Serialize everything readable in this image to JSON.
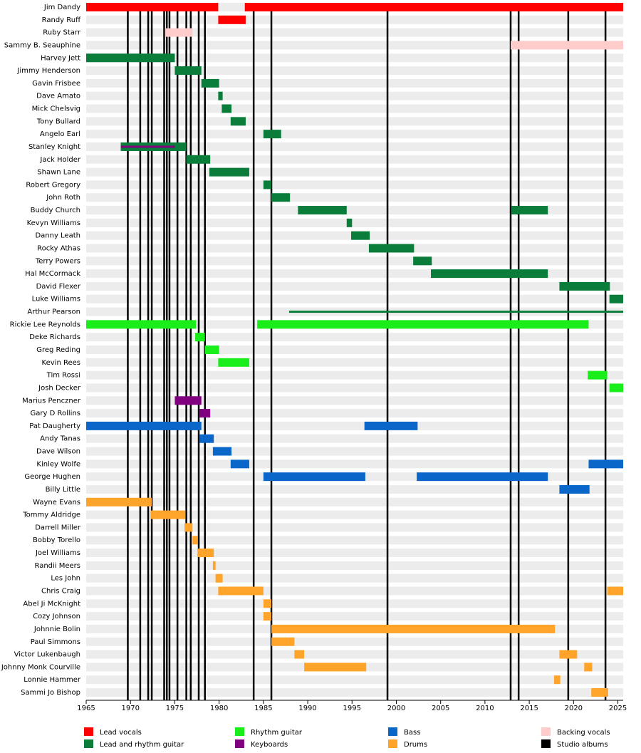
{
  "chart_data": {
    "type": "timeline",
    "xlim": [
      1965,
      2025.6
    ],
    "xticks": [
      1965,
      1970,
      1975,
      1980,
      1985,
      1990,
      1995,
      2000,
      2005,
      2010,
      2015,
      2020,
      2025
    ],
    "series": [
      {
        "name": "Lead vocals",
        "color": "#ff0000"
      },
      {
        "name": "Lead and rhythm guitar",
        "color": "#0a7d3a"
      },
      {
        "name": "Rhythm guitar",
        "color": "#1aee1a"
      },
      {
        "name": "Keyboards",
        "color": "#800080"
      },
      {
        "name": "Bass",
        "color": "#0a66c8"
      },
      {
        "name": "Drums",
        "color": "#ffa42a"
      },
      {
        "name": "Backing vocals",
        "color": "#ffcccc"
      },
      {
        "name": "Studio albums",
        "color": "#000000"
      }
    ],
    "albums": [
      1969.7,
      1971.1,
      1972.0,
      1972.4,
      1973.8,
      1974.1,
      1974.4,
      1975.3,
      1976.3,
      1976.8,
      1977.7,
      1978.4,
      1983.9,
      1985.9,
      1999.0,
      2012.9,
      2013.8,
      2019.4,
      2023.6
    ],
    "rows": [
      {
        "name": "Jim Dandy",
        "bars": [
          {
            "role": 0,
            "start": 1965,
            "end": 1979.9
          },
          {
            "role": 0,
            "start": 1982.9,
            "end": 2025.6
          }
        ]
      },
      {
        "name": "Randy Ruff",
        "bars": [
          {
            "role": 0,
            "start": 1979.9,
            "end": 1983.0
          }
        ]
      },
      {
        "name": "Ruby Starr",
        "bars": [
          {
            "role": 6,
            "start": 1973.9,
            "end": 1977.0
          }
        ]
      },
      {
        "name": "Sammy B. Seauphine",
        "bars": [
          {
            "role": 6,
            "start": 2012.9,
            "end": 2025.6
          }
        ]
      },
      {
        "name": "Harvey Jett",
        "bars": [
          {
            "role": 1,
            "start": 1965,
            "end": 1975.0
          }
        ]
      },
      {
        "name": "Jimmy Henderson",
        "bars": [
          {
            "role": 1,
            "start": 1975.0,
            "end": 1978.0
          }
        ]
      },
      {
        "name": "Gavin Frisbee",
        "bars": [
          {
            "role": 1,
            "start": 1978.0,
            "end": 1980.0
          }
        ]
      },
      {
        "name": "Dave Amato",
        "bars": [
          {
            "role": 1,
            "start": 1979.9,
            "end": 1980.4
          }
        ]
      },
      {
        "name": "Mick Chelsvig",
        "bars": [
          {
            "role": 1,
            "start": 1980.3,
            "end": 1981.4
          }
        ]
      },
      {
        "name": "Tony Bullard",
        "bars": [
          {
            "role": 1,
            "start": 1981.3,
            "end": 1983.0
          }
        ]
      },
      {
        "name": "Angelo Earl",
        "bars": [
          {
            "role": 1,
            "start": 1985.0,
            "end": 1987.0
          }
        ]
      },
      {
        "name": "Stanley Knight",
        "bars": [
          {
            "role": 1,
            "start": 1968.9,
            "end": 1976.3
          },
          {
            "role": 3,
            "start": 1968.9,
            "end": 1975.0,
            "thin": true
          }
        ]
      },
      {
        "name": "Jack Holder",
        "bars": [
          {
            "role": 1,
            "start": 1976.3,
            "end": 1979.0
          }
        ]
      },
      {
        "name": "Shawn Lane",
        "bars": [
          {
            "role": 1,
            "start": 1978.9,
            "end": 1983.4
          }
        ]
      },
      {
        "name": "Robert Gregory",
        "bars": [
          {
            "role": 1,
            "start": 1985.0,
            "end": 1985.9
          }
        ]
      },
      {
        "name": "John Roth",
        "bars": [
          {
            "role": 1,
            "start": 1985.9,
            "end": 1988.0
          }
        ]
      },
      {
        "name": "Buddy Church",
        "bars": [
          {
            "role": 1,
            "start": 1988.9,
            "end": 1994.4
          },
          {
            "role": 1,
            "start": 2013.0,
            "end": 2017.1
          }
        ]
      },
      {
        "name": "Kevyn Williams",
        "bars": [
          {
            "role": 1,
            "start": 1994.4,
            "end": 1995.0
          }
        ]
      },
      {
        "name": "Danny Leath",
        "bars": [
          {
            "role": 1,
            "start": 1994.9,
            "end": 1997.0
          }
        ]
      },
      {
        "name": "Rocky Athas",
        "bars": [
          {
            "role": 1,
            "start": 1996.9,
            "end": 2002.0
          }
        ]
      },
      {
        "name": "Terry Powers",
        "bars": [
          {
            "role": 1,
            "start": 2001.9,
            "end": 2004.0
          }
        ]
      },
      {
        "name": "Hal McCormack",
        "bars": [
          {
            "role": 1,
            "start": 2003.9,
            "end": 2017.1
          }
        ]
      },
      {
        "name": "David Flexer",
        "bars": [
          {
            "role": 1,
            "start": 2018.4,
            "end": 2024.1
          }
        ]
      },
      {
        "name": "Luke Williams",
        "bars": [
          {
            "role": 1,
            "start": 2024.05,
            "end": 2025.6
          }
        ]
      },
      {
        "name": "Arthur Pearson",
        "bars": [
          {
            "role": 1,
            "start": 1987.9,
            "end": 2025.6,
            "thin": true
          }
        ]
      },
      {
        "name": "Rickie Lee Reynolds",
        "bars": [
          {
            "role": 2,
            "start": 1965,
            "end": 1977.4
          },
          {
            "role": 2,
            "start": 1984.3,
            "end": 2021.7
          }
        ]
      },
      {
        "name": "Deke Richards",
        "bars": [
          {
            "role": 2,
            "start": 1977.3,
            "end": 1978.4
          }
        ]
      },
      {
        "name": "Greg Reding",
        "bars": [
          {
            "role": 2,
            "start": 1978.4,
            "end": 1980.0
          }
        ]
      },
      {
        "name": "Kevin Rees",
        "bars": [
          {
            "role": 2,
            "start": 1979.9,
            "end": 1983.4
          }
        ]
      },
      {
        "name": "Tim Rossi",
        "bars": [
          {
            "role": 2,
            "start": 2021.6,
            "end": 2023.8
          }
        ]
      },
      {
        "name": "Josh Decker",
        "bars": [
          {
            "role": 2,
            "start": 2024.05,
            "end": 2025.6
          }
        ]
      },
      {
        "name": "Marius Penczner",
        "bars": [
          {
            "role": 3,
            "start": 1975.0,
            "end": 1978.0
          }
        ]
      },
      {
        "name": "Gary D Rollins",
        "bars": [
          {
            "role": 3,
            "start": 1977.8,
            "end": 1979.0
          }
        ]
      },
      {
        "name": "Pat Daugherty",
        "bars": [
          {
            "role": 4,
            "start": 1965,
            "end": 1978.0
          },
          {
            "role": 4,
            "start": 1996.4,
            "end": 2002.4
          }
        ]
      },
      {
        "name": "Andy Tanas",
        "bars": [
          {
            "role": 4,
            "start": 1977.8,
            "end": 1979.4
          }
        ]
      },
      {
        "name": "Dave Wilson",
        "bars": [
          {
            "role": 4,
            "start": 1979.3,
            "end": 1981.4
          }
        ]
      },
      {
        "name": "Kinley Wolfe",
        "bars": [
          {
            "role": 4,
            "start": 1981.3,
            "end": 1983.4
          },
          {
            "role": 4,
            "start": 2021.7,
            "end": 2025.6
          }
        ]
      },
      {
        "name": "George Hughen",
        "bars": [
          {
            "role": 4,
            "start": 1985.0,
            "end": 1996.5
          },
          {
            "role": 4,
            "start": 2002.3,
            "end": 2017.1
          }
        ]
      },
      {
        "name": "Billy Little",
        "bars": [
          {
            "role": 4,
            "start": 2018.4,
            "end": 2021.8
          }
        ]
      },
      {
        "name": "Wayne Evans",
        "bars": [
          {
            "role": 5,
            "start": 1965,
            "end": 1972.4
          }
        ]
      },
      {
        "name": "Tommy Aldridge",
        "bars": [
          {
            "role": 5,
            "start": 1972.3,
            "end": 1976.2
          }
        ]
      },
      {
        "name": "Darrell Miller",
        "bars": [
          {
            "role": 5,
            "start": 1976.1,
            "end": 1977.0
          }
        ]
      },
      {
        "name": "Bobby Torello",
        "bars": [
          {
            "role": 5,
            "start": 1977.0,
            "end": 1977.6
          }
        ]
      },
      {
        "name": "Joel Williams",
        "bars": [
          {
            "role": 5,
            "start": 1977.6,
            "end": 1979.4
          }
        ]
      },
      {
        "name": "Randii Meers",
        "bars": [
          {
            "role": 5,
            "start": 1979.3,
            "end": 1979.6
          }
        ]
      },
      {
        "name": "Les John",
        "bars": [
          {
            "role": 5,
            "start": 1979.6,
            "end": 1980.4
          }
        ]
      },
      {
        "name": "Chris Craig",
        "bars": [
          {
            "role": 5,
            "start": 1979.9,
            "end": 1985.0
          },
          {
            "role": 5,
            "start": 2023.8,
            "end": 2025.6
          }
        ]
      },
      {
        "name": "Abel Ji McKnight",
        "bars": [
          {
            "role": 5,
            "start": 1985.0,
            "end": 1985.9
          }
        ]
      },
      {
        "name": "Cozy Johnson",
        "bars": [
          {
            "role": 5,
            "start": 1985.0,
            "end": 1985.9
          }
        ]
      },
      {
        "name": "Johnnie Bolin",
        "bars": [
          {
            "role": 5,
            "start": 1985.9,
            "end": 2017.9
          }
        ]
      },
      {
        "name": "Paul Simmons",
        "bars": [
          {
            "role": 5,
            "start": 1985.9,
            "end": 1988.5
          }
        ]
      },
      {
        "name": "Victor Lukenbaugh",
        "bars": [
          {
            "role": 5,
            "start": 1988.5,
            "end": 1989.6
          },
          {
            "role": 5,
            "start": 2018.4,
            "end": 2020.4
          }
        ]
      },
      {
        "name": "Johnny Monk Courville",
        "bars": [
          {
            "role": 5,
            "start": 1989.6,
            "end": 1996.6
          },
          {
            "role": 5,
            "start": 2021.2,
            "end": 2022.1
          }
        ]
      },
      {
        "name": "Lonnie Hammer",
        "bars": [
          {
            "role": 5,
            "start": 2017.8,
            "end": 2018.5
          }
        ]
      },
      {
        "name": "Sammi Jo Bishop",
        "bars": [
          {
            "role": 5,
            "start": 2022.0,
            "end": 2023.9
          }
        ]
      }
    ]
  }
}
